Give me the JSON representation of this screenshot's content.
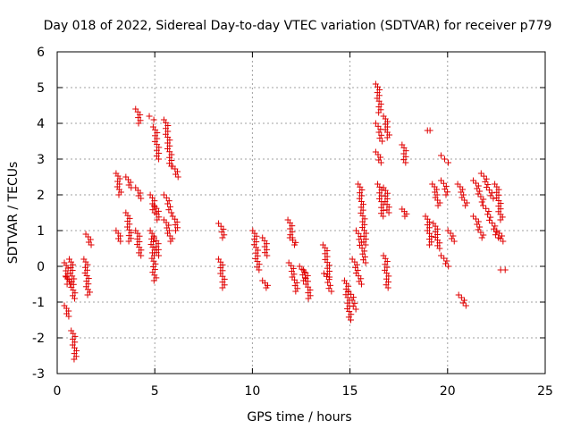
{
  "chart_data": {
    "type": "scatter",
    "title": "Day 018 of 2022, Sidereal Day-to-day VTEC variation (SDTVAR) for receiver p779",
    "xlabel": "GPS time / hours",
    "ylabel": "SDTVAR / TECUs",
    "xlim": [
      0,
      25
    ],
    "ylim": [
      -3,
      6
    ],
    "xticks": [
      0,
      5,
      10,
      15,
      20,
      25
    ],
    "yticks": [
      -3,
      -2,
      -1,
      0,
      1,
      2,
      3,
      4,
      5,
      6
    ],
    "grid": true,
    "marker": "plus",
    "marker_color": "#e00000",
    "series": [
      {
        "name": "SDTVAR",
        "segments": [
          {
            "x": [
              0.45,
              0.55
            ],
            "y": [
              0.1,
              -0.5
            ]
          },
          {
            "x": [
              0.45,
              0.55
            ],
            "y": [
              -1.1,
              -1.4
            ]
          },
          {
            "x": [
              0.55,
              0.7
            ],
            "y": [
              -0.3,
              -0.5
            ]
          },
          {
            "x": [
              0.7,
              0.85
            ],
            "y": [
              0.2,
              -0.9
            ]
          },
          {
            "x": [
              0.8,
              0.95
            ],
            "y": [
              -1.8,
              -2.6
            ]
          },
          {
            "x": [
              1.45,
              1.6
            ],
            "y": [
              0.2,
              -0.8
            ]
          },
          {
            "x": [
              1.55,
              1.7
            ],
            "y": [
              0.9,
              0.6
            ]
          },
          {
            "x": [
              3.1,
              3.2
            ],
            "y": [
              2.6,
              2.0
            ]
          },
          {
            "x": [
              3.1,
              3.2
            ],
            "y": [
              1.0,
              0.7
            ]
          },
          {
            "x": [
              3.6,
              3.75
            ],
            "y": [
              2.5,
              2.2
            ]
          },
          {
            "x": [
              3.6,
              3.75
            ],
            "y": [
              1.5,
              0.7
            ]
          },
          {
            "x": [
              4.1,
              4.25
            ],
            "y": [
              4.4,
              4.0
            ]
          },
          {
            "x": [
              4.1,
              4.25
            ],
            "y": [
              2.2,
              1.9
            ]
          },
          {
            "x": [
              4.1,
              4.25
            ],
            "y": [
              1.0,
              0.3
            ]
          },
          {
            "x": [
              4.8,
              4.95
            ],
            "y": [
              4.2,
              4.1
            ]
          },
          {
            "x": [
              4.85,
              5.0
            ],
            "y": [
              2.0,
              1.5
            ]
          },
          {
            "x": [
              4.85,
              5.0
            ],
            "y": [
              1.0,
              -0.4
            ]
          },
          {
            "x": [
              5.0,
              5.2
            ],
            "y": [
              3.9,
              3.0
            ]
          },
          {
            "x": [
              5.05,
              5.2
            ],
            "y": [
              1.7,
              1.3
            ]
          },
          {
            "x": [
              5.05,
              5.2
            ],
            "y": [
              0.8,
              0.3
            ]
          },
          {
            "x": [
              5.55,
              5.85
            ],
            "y": [
              4.1,
              2.8
            ]
          },
          {
            "x": [
              5.55,
              5.85
            ],
            "y": [
              2.0,
              1.5
            ]
          },
          {
            "x": [
              5.55,
              5.85
            ],
            "y": [
              1.3,
              0.7
            ]
          },
          {
            "x": [
              6.0,
              6.15
            ],
            "y": [
              2.8,
              2.5
            ]
          },
          {
            "x": [
              6.0,
              6.15
            ],
            "y": [
              1.4,
              1.0
            ]
          },
          {
            "x": [
              8.35,
              8.55
            ],
            "y": [
              1.2,
              0.8
            ]
          },
          {
            "x": [
              8.35,
              8.55
            ],
            "y": [
              0.2,
              -0.6
            ]
          },
          {
            "x": [
              10.1,
              10.3
            ],
            "y": [
              1.0,
              -0.1
            ]
          },
          {
            "x": [
              10.6,
              10.75
            ],
            "y": [
              0.8,
              0.3
            ]
          },
          {
            "x": [
              10.6,
              10.75
            ],
            "y": [
              -0.4,
              -0.6
            ]
          },
          {
            "x": [
              11.9,
              12.05
            ],
            "y": [
              1.3,
              0.8
            ]
          },
          {
            "x": [
              12.0,
              12.2
            ],
            "y": [
              0.8,
              0.6
            ]
          },
          {
            "x": [
              11.95,
              12.3
            ],
            "y": [
              0.1,
              -0.7
            ]
          },
          {
            "x": [
              12.5,
              12.7
            ],
            "y": [
              0.0,
              -0.4
            ]
          },
          {
            "x": [
              12.7,
              12.95
            ],
            "y": [
              -0.1,
              -0.9
            ]
          },
          {
            "x": [
              13.7,
              13.95
            ],
            "y": [
              0.6,
              -0.3
            ]
          },
          {
            "x": [
              13.75,
              14.05
            ],
            "y": [
              -0.2,
              -0.7
            ]
          },
          {
            "x": [
              14.8,
              15.0
            ],
            "y": [
              -0.4,
              -1.5
            ]
          },
          {
            "x": [
              15.0,
              15.3
            ],
            "y": [
              -0.7,
              -1.2
            ]
          },
          {
            "x": [
              15.2,
              15.55
            ],
            "y": [
              0.2,
              -0.5
            ]
          },
          {
            "x": [
              15.4,
              15.8
            ],
            "y": [
              1.0,
              0.1
            ]
          },
          {
            "x": [
              15.5,
              15.8
            ],
            "y": [
              2.3,
              0.6
            ]
          },
          {
            "x": [
              16.4,
              16.55
            ],
            "y": [
              5.1,
              4.3
            ]
          },
          {
            "x": [
              16.4,
              16.65
            ],
            "y": [
              4.0,
              3.5
            ]
          },
          {
            "x": [
              16.4,
              16.55
            ],
            "y": [
              3.2,
              2.9
            ]
          },
          {
            "x": [
              16.5,
              16.7
            ],
            "y": [
              2.3,
              1.4
            ]
          },
          {
            "x": [
              16.8,
              16.95
            ],
            "y": [
              4.2,
              3.6
            ]
          },
          {
            "x": [
              16.8,
              16.95
            ],
            "y": [
              2.2,
              1.5
            ]
          },
          {
            "x": [
              16.8,
              16.95
            ],
            "y": [
              0.3,
              -0.6
            ]
          },
          {
            "x": [
              17.75,
              17.85
            ],
            "y": [
              3.4,
              2.9
            ]
          },
          {
            "x": [
              17.75,
              17.85
            ],
            "y": [
              1.6,
              1.4
            ]
          },
          {
            "x": [
              18.95,
              19.15
            ],
            "y": [
              1.4,
              0.6
            ]
          },
          {
            "x": [
              19.05,
              19.1
            ],
            "y": [
              3.8,
              3.8
            ]
          },
          {
            "x": [
              19.3,
              19.55
            ],
            "y": [
              2.3,
              1.7
            ]
          },
          {
            "x": [
              19.35,
              19.55
            ],
            "y": [
              1.2,
              0.5
            ]
          },
          {
            "x": [
              19.75,
              19.95
            ],
            "y": [
              3.1,
              2.9
            ]
          },
          {
            "x": [
              19.75,
              20.0
            ],
            "y": [
              2.4,
              2.0
            ]
          },
          {
            "x": [
              19.75,
              20.0
            ],
            "y": [
              0.3,
              0.0
            ]
          },
          {
            "x": [
              20.1,
              20.3
            ],
            "y": [
              1.0,
              0.7
            ]
          },
          {
            "x": [
              20.6,
              20.95
            ],
            "y": [
              2.3,
              1.7
            ]
          },
          {
            "x": [
              20.65,
              20.9
            ],
            "y": [
              -0.8,
              -1.1
            ]
          },
          {
            "x": [
              21.4,
              21.8
            ],
            "y": [
              2.4,
              1.8
            ]
          },
          {
            "x": [
              21.4,
              21.8
            ],
            "y": [
              1.4,
              0.8
            ]
          },
          {
            "x": [
              21.8,
              22.3
            ],
            "y": [
              2.6,
              1.9
            ]
          },
          {
            "x": [
              21.9,
              22.6
            ],
            "y": [
              1.7,
              0.8
            ]
          },
          {
            "x": [
              22.5,
              22.75
            ],
            "y": [
              2.3,
              1.3
            ]
          },
          {
            "x": [
              22.6,
              22.8
            ],
            "y": [
              1.0,
              0.7
            ]
          },
          {
            "x": [
              22.8,
              22.95
            ],
            "y": [
              -0.1,
              -0.1
            ]
          }
        ]
      }
    ]
  }
}
